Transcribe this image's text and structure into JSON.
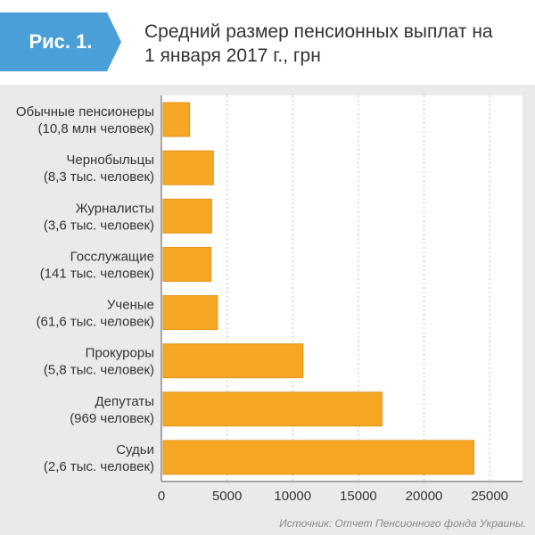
{
  "header": {
    "figure_label": "Рис. 1.",
    "title_line1": "Средний размер пенсионных выплат на",
    "title_line2": "1 января 2017 г., грн"
  },
  "source": "Источник: Отчет Пенсионного фонда Украины.",
  "colors": {
    "bar": "#f5a623",
    "bar_border": "#e3951a",
    "badge": "#4a9fd8",
    "panel": "#eaeaea"
  },
  "chart_data": {
    "type": "bar",
    "orientation": "horizontal",
    "title": "Средний размер пенсионных выплат на 1 января 2017 г., грн",
    "xlim": [
      0,
      27500
    ],
    "x_ticks": [
      0,
      5000,
      10000,
      15000,
      20000,
      25000
    ],
    "grid": true,
    "categories": [
      {
        "name": "Обычные пенсионеры",
        "sub": "(10,8 млн человек)"
      },
      {
        "name": "Чернобыльцы",
        "sub": "(8,3 тыс. человек)"
      },
      {
        "name": "Журналисты",
        "sub": "(3,6 тыс. человек)"
      },
      {
        "name": "Госслужащие",
        "sub": "(141 тыс. человек)"
      },
      {
        "name": "Ученые",
        "sub": "(61,6 тыс. человек)"
      },
      {
        "name": "Прокуроры",
        "sub": "(5,8 тыс. человек)"
      },
      {
        "name": "Депутаты",
        "sub": "(969 человек)"
      },
      {
        "name": "Судьи",
        "sub": "(2,6 тыс. человек)"
      }
    ],
    "values": [
      2150,
      3960,
      3820,
      3780,
      4270,
      10780,
      16800,
      23800
    ]
  }
}
